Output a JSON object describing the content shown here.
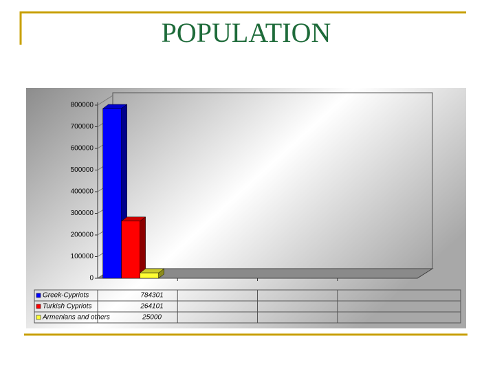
{
  "title": "POPULATION",
  "chart_data": {
    "type": "bar3d",
    "categories": [
      null,
      null,
      null,
      null
    ],
    "series": [
      {
        "name": "Greek-Cypriots",
        "color": "#0000ff",
        "values": [
          784301,
          null,
          null,
          null
        ]
      },
      {
        "name": "Turkish Cypriots",
        "color": "#ff0000",
        "values": [
          264101,
          null,
          null,
          null
        ]
      },
      {
        "name": "Armenians and others",
        "color": "#ffff33",
        "values": [
          25000,
          null,
          null,
          null
        ]
      }
    ],
    "ylim": [
      0,
      800000
    ],
    "yticks": [
      0,
      100000,
      200000,
      300000,
      400000,
      500000,
      600000,
      700000,
      800000
    ],
    "grid": false,
    "data_table": true
  }
}
